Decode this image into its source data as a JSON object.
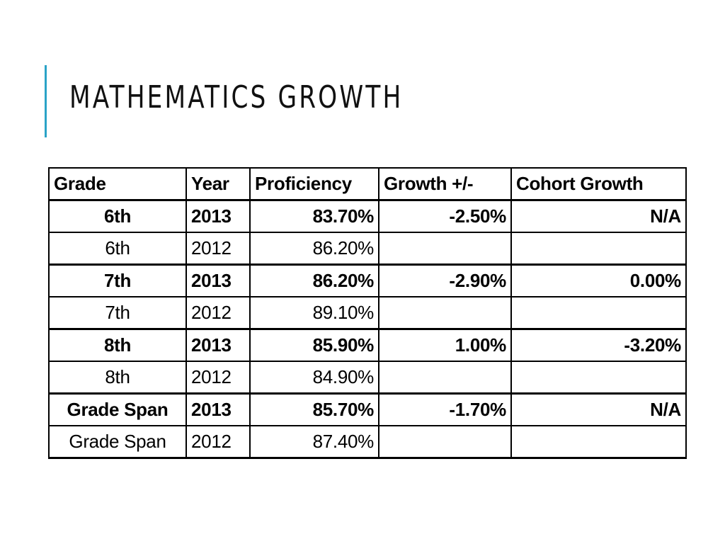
{
  "slide": {
    "title": "MATHEMATICS GROWTH",
    "accent_color": "#2aa3c7"
  },
  "table": {
    "headers": [
      "Grade",
      "Year",
      "Proficiency",
      "Growth +/-",
      "Cohort Growth"
    ],
    "rows": [
      {
        "grade": "6th",
        "year": "2013",
        "proficiency": "83.70%",
        "growth": "-2.50%",
        "cohort": "N/A",
        "bold": true
      },
      {
        "grade": "6th",
        "year": "2012",
        "proficiency": "86.20%",
        "growth": "",
        "cohort": "",
        "bold": false
      },
      {
        "grade": "7th",
        "year": "2013",
        "proficiency": "86.20%",
        "growth": "-2.90%",
        "cohort": "0.00%",
        "bold": true
      },
      {
        "grade": "7th",
        "year": "2012",
        "proficiency": "89.10%",
        "growth": "",
        "cohort": "",
        "bold": false
      },
      {
        "grade": "8th",
        "year": "2013",
        "proficiency": "85.90%",
        "growth": "1.00%",
        "cohort": "-3.20%",
        "bold": true
      },
      {
        "grade": "8th",
        "year": "2012",
        "proficiency": "84.90%",
        "growth": "",
        "cohort": "",
        "bold": false
      },
      {
        "grade": "Grade Span",
        "year": "2013",
        "proficiency": "85.70%",
        "growth": "-1.70%",
        "cohort": "N/A",
        "bold": true
      },
      {
        "grade": "Grade Span",
        "year": "2012",
        "proficiency": "87.40%",
        "growth": "",
        "cohort": "",
        "bold": false
      }
    ]
  }
}
